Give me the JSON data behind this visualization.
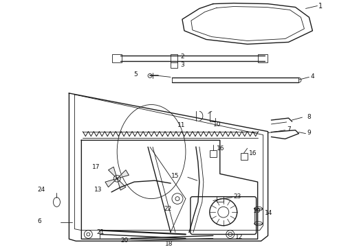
{
  "bg_color": "#ffffff",
  "line_color": "#1a1a1a",
  "label_color": "#111111",
  "fig_width": 4.9,
  "fig_height": 3.6,
  "dpi": 100
}
